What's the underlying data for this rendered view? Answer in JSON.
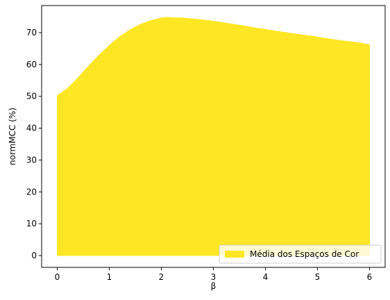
{
  "chart_data": {
    "type": "area",
    "title": "",
    "xlabel": "β",
    "ylabel": "normMCC (%)",
    "xlim": [
      -0.3,
      6.3
    ],
    "ylim": [
      -3.7,
      78.5
    ],
    "xticks": [
      0,
      1,
      2,
      3,
      4,
      5,
      6
    ],
    "yticks": [
      0,
      10,
      20,
      30,
      40,
      50,
      60,
      70
    ],
    "grid": false,
    "legend_position": "lower-right",
    "series": [
      {
        "name": "Média dos Espaços de Cor",
        "color": "#fde725",
        "baseline": 0,
        "x": [
          0,
          0.2,
          0.4,
          0.6,
          0.8,
          1.0,
          1.2,
          1.4,
          1.6,
          1.8,
          2.0,
          2.1,
          2.2,
          2.4,
          2.6,
          2.8,
          3.0,
          3.2,
          3.4,
          3.6,
          3.8,
          4.0,
          4.2,
          4.4,
          4.6,
          4.8,
          5.0,
          5.2,
          5.4,
          5.6,
          5.8,
          6.0
        ],
        "y": [
          50.2,
          52.5,
          55.8,
          59.5,
          62.9,
          66.0,
          68.7,
          70.9,
          72.6,
          73.8,
          74.6,
          74.8,
          74.7,
          74.6,
          74.3,
          74.0,
          73.6,
          73.1,
          72.6,
          72.1,
          71.5,
          71.0,
          70.5,
          70.0,
          69.5,
          69.1,
          68.6,
          68.1,
          67.6,
          67.2,
          66.8,
          66.2
        ]
      }
    ]
  }
}
